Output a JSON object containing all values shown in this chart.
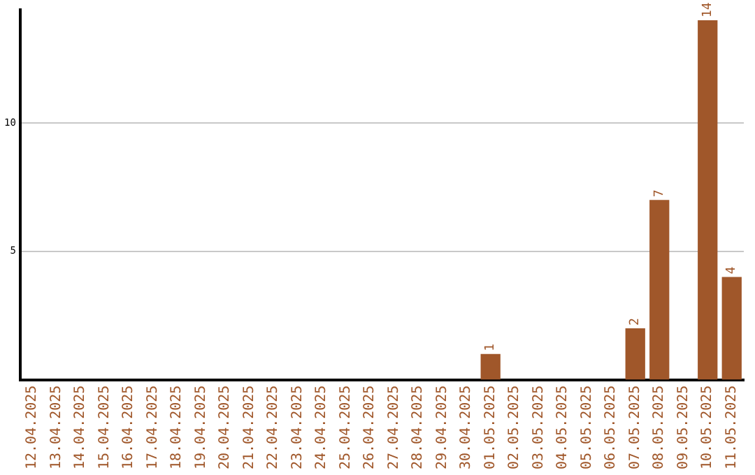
{
  "chart_data": {
    "type": "bar",
    "categories": [
      "12.04.2025",
      "13.04.2025",
      "14.04.2025",
      "15.04.2025",
      "16.04.2025",
      "17.04.2025",
      "18.04.2025",
      "19.04.2025",
      "20.04.2025",
      "21.04.2025",
      "22.04.2025",
      "23.04.2025",
      "24.04.2025",
      "25.04.2025",
      "26.04.2025",
      "27.04.2025",
      "28.04.2025",
      "29.04.2025",
      "30.04.2025",
      "01.05.2025",
      "02.05.2025",
      "03.05.2025",
      "04.05.2025",
      "05.05.2025",
      "06.05.2025",
      "07.05.2025",
      "08.05.2025",
      "09.05.2025",
      "10.05.2025",
      "11.05.2025"
    ],
    "values": [
      0,
      0,
      0,
      0,
      0,
      0,
      0,
      0,
      0,
      0,
      0,
      0,
      0,
      0,
      0,
      0,
      0,
      0,
      0,
      1,
      0,
      0,
      0,
      0,
      0,
      2,
      7,
      0,
      14,
      4
    ],
    "value_labels": [
      null,
      null,
      null,
      null,
      null,
      null,
      null,
      null,
      null,
      null,
      null,
      null,
      null,
      null,
      null,
      null,
      null,
      null,
      null,
      "1",
      null,
      null,
      null,
      null,
      null,
      "2",
      "7",
      null,
      "14",
      "4"
    ],
    "color": "#a0572a",
    "ylim": [
      0,
      14.4
    ],
    "yticks": [
      5,
      10
    ],
    "grid": "y",
    "legend": false
  }
}
